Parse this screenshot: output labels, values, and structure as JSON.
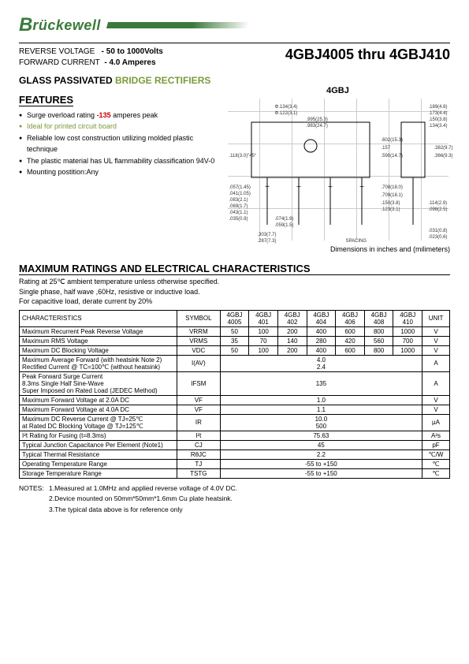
{
  "logo": {
    "b": "B",
    "rest": "rückewell"
  },
  "header": {
    "reverse_voltage_label": "REVERSE VOLTAGE",
    "reverse_voltage_value": "-   50 to 1000Volts",
    "forward_current_label": "FORWARD CURRENT",
    "forward_current_value": "-   4.0 Amperes",
    "part_title": "4GBJ4005 thru 4GBJ410",
    "subtitle_a": "GLASS PASSIVATED ",
    "subtitle_b": "BRIDGE RECTIFIERS"
  },
  "features": {
    "heading": "FEATURES",
    "items": [
      {
        "pre": "Surge overload rating ",
        "red": "-135",
        "post": " amperes peak"
      },
      {
        "text": "Ideal for printed circuit board",
        "green": true
      },
      {
        "text": "Reliable low cost construction utilizing molded plastic technique"
      },
      {
        "text": "The plastic material has UL flammability classification 94V-0"
      },
      {
        "text": "Mounting postition:Any"
      }
    ]
  },
  "package": {
    "label": "4GBJ",
    "dim_note": "Dimensions in inches and (milimeters)",
    "dims": [
      "Φ.134(3.4)",
      "Φ.122(3.1)",
      ".995(25.3)",
      ".983(24.7)",
      ".118(3.0)\"45°",
      ".057(1.45)",
      ".041(1.05)",
      ".083(2.1)",
      ".069(1.7)",
      ".043(1.1)",
      ".035(0.9)",
      ".074(1.9)",
      ".059(1.5)",
      ".303(7.7)",
      ".287(7.3)",
      ".157",
      ".602(15.3)",
      ".590(14.7)",
      ".150(3.8)",
      ".123(3.1)",
      ".708(18.0)",
      ".709(18.1)",
      "SPACING",
      ".189(4.8)",
      ".173(4.4)",
      ".150(3.8)",
      ".134(3.4)",
      ".382(9.7)",
      ".366(9.3)",
      ".114(2.9)",
      ".098(2.5)",
      ".031(0.8)",
      ".023(0.6)"
    ]
  },
  "ratings": {
    "heading": "MAXIMUM RATINGS AND ELECTRICAL CHARACTERISTICS",
    "notes": [
      "Rating at 25℃ ambient temperature unless otherwise specified.",
      "Single phase, half wave ,60Hz, resistive or inductive load.",
      "For capacitive load, derate current by 20%"
    ],
    "columns": [
      "CHARACTERISTICS",
      "SYMBOL",
      "4GBJ 4005",
      "4GBJ 401",
      "4GBJ 402",
      "4GBJ 404",
      "4GBJ 406",
      "4GBJ 408",
      "4GBJ 410",
      "UNIT"
    ],
    "rows": [
      {
        "c": "Maximum Recurrent Peak Reverse Voltage",
        "s": "VRRM",
        "v": [
          "50",
          "100",
          "200",
          "400",
          "600",
          "800",
          "1000"
        ],
        "u": "V"
      },
      {
        "c": "Maximum RMS Voltage",
        "s": "VRMS",
        "v": [
          "35",
          "70",
          "140",
          "280",
          "420",
          "560",
          "700"
        ],
        "u": "V"
      },
      {
        "c": "Maximum DC Blocking Voltage",
        "s": "VDC",
        "v": [
          "50",
          "100",
          "200",
          "400",
          "600",
          "800",
          "1000"
        ],
        "u": "V"
      },
      {
        "c": "Maximum Average   Forward   (with heatsink Note 2)\nRectified  Current       @ TC=100℃   (without heatsink)",
        "s": "I(AV)",
        "span": "4.0\n2.4",
        "u": "A"
      },
      {
        "c": "Peak Forward Surge Current\n8.3ms Single Half Sine-Wave\nSuper Imposed on Rated Load (JEDEC Method)",
        "s": "IFSM",
        "span": "135",
        "u": "A"
      },
      {
        "c": "Maximum  Forward Voltage at 2.0A DC",
        "s": "VF",
        "span": "1.0",
        "u": "V"
      },
      {
        "c": "Maximum  Forward Voltage at 4.0A DC",
        "s": "VF",
        "span": "1.1",
        "u": "V"
      },
      {
        "c": "Maximum  DC Reverse Current        @ TJ=25℃\nat Rated DC Blocking Voltage         @ TJ=125℃",
        "s": "IR",
        "span": "10.0\n500",
        "u": "µA"
      },
      {
        "c": "I²t Rating for Fusing (t=8.3ms)",
        "s": "I²t",
        "span": "75.63",
        "u": "A²s"
      },
      {
        "c": "Typical Junction Capacitance Per Element (Note1)",
        "s": "CJ",
        "span": "45",
        "u": "pF"
      },
      {
        "c": "Typical Thermal Resistance",
        "s": "RθJC",
        "span": "2.2",
        "u": "℃/W"
      },
      {
        "c": "Operating  Temperature Range",
        "s": "TJ",
        "span": "-55 to +150",
        "u": "℃"
      },
      {
        "c": "Storage Temperature Range",
        "s": "TSTG",
        "span": "-55 to +150",
        "u": "℃"
      }
    ]
  },
  "footnotes": {
    "label": "NOTES:",
    "items": [
      "1.Measured at 1.0MHz and applied reverse voltage of 4.0V DC.",
      "2.Device mounted on 50mm*50mm*1.6mm Cu plate heatsink.",
      "3.The typical data above is for reference only"
    ]
  },
  "style": {
    "green": "#7a9a3a",
    "red": "#cc0000",
    "text": "#000000",
    "border": "#000000"
  }
}
